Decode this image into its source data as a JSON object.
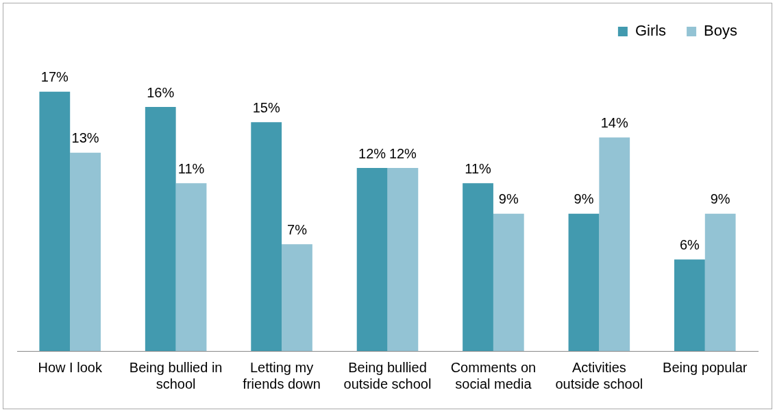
{
  "chart_data": {
    "type": "bar",
    "categories": [
      "How I look",
      "Being bullied in school",
      "Letting my friends down",
      "Being bullied outside school",
      "Comments on social media",
      "Activities outside school",
      "Being popular"
    ],
    "series": [
      {
        "name": "Girls",
        "color": "#429aaf",
        "values": [
          17,
          16,
          15,
          12,
          11,
          9,
          6
        ],
        "value_labels": [
          "17%",
          "16%",
          "15%",
          "12%",
          "11%",
          "9%",
          "6%"
        ]
      },
      {
        "name": "Boys",
        "color": "#93c3d4",
        "values": [
          13,
          11,
          7,
          12,
          9,
          14,
          9
        ],
        "value_labels": [
          "13%",
          "11%",
          "7%",
          "12%",
          "9%",
          "14%",
          "9%"
        ]
      }
    ],
    "legend": "top right",
    "grid": false
  }
}
